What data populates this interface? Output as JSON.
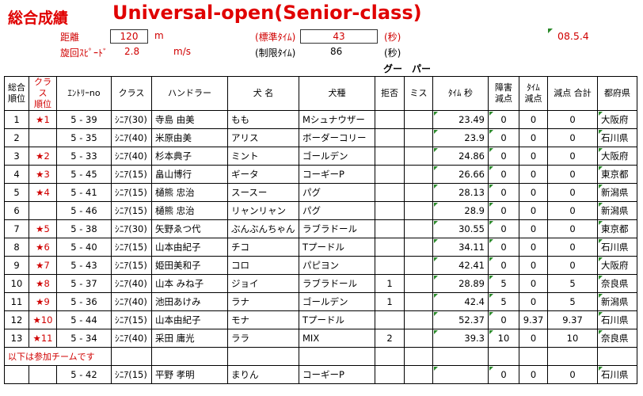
{
  "header": {
    "title_jp": "総合成績",
    "title_en": "Universal-open(Senior-class)",
    "distance_label": "距離",
    "distance_value": "120",
    "distance_unit": "m",
    "speed_label": "旋回ｽﾋﾟｰﾄﾞ",
    "speed_value": "2.8",
    "speed_unit": "m/s",
    "std_time_label": "(標準ﾀｲﾑ)",
    "std_time_value": "43",
    "std_time_unit": "(秒)",
    "limit_time_label": "(制限ﾀｲﾑ)",
    "limit_time_value": "86",
    "limit_time_unit": "(秒)",
    "date": "08.5.4",
    "group_label": "グー　パー"
  },
  "table": {
    "columns": [
      "総合\n順位",
      "クラス\n順位",
      "ｴﾝﾄﾘｰno",
      "クラス",
      "ハンドラー",
      "犬 名",
      "犬種",
      "拒否",
      "ミス",
      "ﾀｲﾑ 秒",
      "障害\n減点",
      "ﾀｲﾑ\n減点",
      "減点 合計",
      "都府県"
    ],
    "rows": [
      {
        "rank": "1",
        "class_rank": "★1",
        "entry": "5 - 39",
        "cls": "ｼﾆｱ(30)",
        "handler": "寺島 由美",
        "dog": "もも",
        "breed": "Mシュナウザー",
        "refusal": "",
        "miss": "",
        "time": "23.49",
        "obs": "0",
        "tpen": "0",
        "total": "0",
        "pref": "大阪府"
      },
      {
        "rank": "2",
        "class_rank": "",
        "entry": "5 - 35",
        "cls": "ｼﾆｱ(40)",
        "handler": "米原由美",
        "dog": "アリス",
        "breed": "ボーダーコリー",
        "refusal": "",
        "miss": "",
        "time": "23.9",
        "obs": "0",
        "tpen": "0",
        "total": "0",
        "pref": "石川県"
      },
      {
        "rank": "3",
        "class_rank": "★2",
        "entry": "5 - 33",
        "cls": "ｼﾆｱ(40)",
        "handler": "杉本典子",
        "dog": "ミント",
        "breed": "ゴールデン",
        "refusal": "",
        "miss": "",
        "time": "24.86",
        "obs": "0",
        "tpen": "0",
        "total": "0",
        "pref": "大阪府"
      },
      {
        "rank": "4",
        "class_rank": "★3",
        "entry": "5 - 45",
        "cls": "ｼﾆｱ(15)",
        "handler": "畠山博行",
        "dog": "ギータ",
        "breed": "コーギーP",
        "refusal": "",
        "miss": "",
        "time": "26.66",
        "obs": "0",
        "tpen": "0",
        "total": "0",
        "pref": "東京都"
      },
      {
        "rank": "5",
        "class_rank": "★4",
        "entry": "5 - 41",
        "cls": "ｼﾆｱ(15)",
        "handler": "樋熊 忠治",
        "dog": "スースー",
        "breed": "パグ",
        "refusal": "",
        "miss": "",
        "time": "28.13",
        "obs": "0",
        "tpen": "0",
        "total": "0",
        "pref": "新潟県"
      },
      {
        "rank": "6",
        "class_rank": "",
        "entry": "5 - 46",
        "cls": "ｼﾆｱ(15)",
        "handler": "樋熊 忠治",
        "dog": "リャンリャン",
        "breed": "パグ",
        "refusal": "",
        "miss": "",
        "time": "28.9",
        "obs": "0",
        "tpen": "0",
        "total": "0",
        "pref": "新潟県"
      },
      {
        "rank": "7",
        "class_rank": "★5",
        "entry": "5 - 38",
        "cls": "ｼﾆｱ(30)",
        "handler": "矢野ゑつ代",
        "dog": "ぶんぶんちゃん",
        "breed": "ラブラドール",
        "refusal": "",
        "miss": "",
        "time": "30.55",
        "obs": "0",
        "tpen": "0",
        "total": "0",
        "pref": "東京都"
      },
      {
        "rank": "8",
        "class_rank": "★6",
        "entry": "5 - 40",
        "cls": "ｼﾆｱ(15)",
        "handler": "山本由紀子",
        "dog": "チコ",
        "breed": "Tプードル",
        "refusal": "",
        "miss": "",
        "time": "34.11",
        "obs": "0",
        "tpen": "0",
        "total": "0",
        "pref": "石川県"
      },
      {
        "rank": "9",
        "class_rank": "★7",
        "entry": "5 - 43",
        "cls": "ｼﾆｱ(15)",
        "handler": "姫田美和子",
        "dog": "コロ",
        "breed": "パピヨン",
        "refusal": "",
        "miss": "",
        "time": "42.41",
        "obs": "0",
        "tpen": "0",
        "total": "0",
        "pref": "大阪府"
      },
      {
        "rank": "10",
        "class_rank": "★8",
        "entry": "5 - 37",
        "cls": "ｼﾆｱ(40)",
        "handler": "山本 みね子",
        "dog": "ジョイ",
        "breed": "ラブラドール",
        "refusal": "1",
        "miss": "",
        "time": "28.89",
        "obs": "5",
        "tpen": "0",
        "total": "5",
        "pref": "奈良県"
      },
      {
        "rank": "11",
        "class_rank": "★9",
        "entry": "5 - 36",
        "cls": "ｼﾆｱ(40)",
        "handler": "池田あけみ",
        "dog": "ラナ",
        "breed": "ゴールデン",
        "refusal": "1",
        "miss": "",
        "time": "42.4",
        "obs": "5",
        "tpen": "0",
        "total": "5",
        "pref": "新潟県"
      },
      {
        "rank": "12",
        "class_rank": "★10",
        "entry": "5 - 44",
        "cls": "ｼﾆｱ(15)",
        "handler": "山本由紀子",
        "dog": "モナ",
        "breed": "Tプードル",
        "refusal": "",
        "miss": "",
        "time": "52.37",
        "obs": "0",
        "tpen": "9.37",
        "total": "9.37",
        "pref": "石川県"
      },
      {
        "rank": "13",
        "class_rank": "★11",
        "entry": "5 - 34",
        "cls": "ｼﾆｱ(40)",
        "handler": "采田 庸光",
        "dog": "ララ",
        "breed": "MIX",
        "refusal": "2",
        "miss": "",
        "time": "39.3",
        "obs": "10",
        "tpen": "0",
        "total": "10",
        "pref": "奈良県"
      }
    ],
    "note": "以下は参加チームです",
    "extra_row": {
      "rank": "",
      "class_rank": "",
      "entry": "5 - 42",
      "cls": "ｼﾆｱ(15)",
      "handler": "平野 孝明",
      "dog": "まりん",
      "breed": "コーギーP",
      "refusal": "",
      "miss": "",
      "time": "",
      "obs": "0",
      "tpen": "0",
      "total": "0",
      "pref": "石川県"
    }
  },
  "colors": {
    "accent_red": "#e00000",
    "tick_green": "#2a8a2a"
  }
}
